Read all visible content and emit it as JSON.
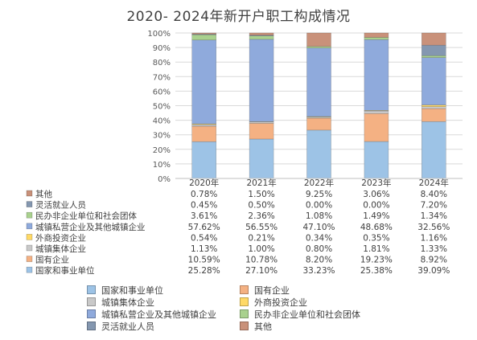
{
  "chart_data": {
    "type": "bar",
    "stacked": true,
    "percent": true,
    "title": "2020- 2024年新开户职工构成情况",
    "categories": [
      "2020年",
      "2021年",
      "2022年",
      "2023年",
      "2024年"
    ],
    "ylim": [
      0,
      100
    ],
    "yticks": [
      "0%",
      "10%",
      "20%",
      "30%",
      "40%",
      "50%",
      "60%",
      "70%",
      "80%",
      "90%",
      "100%"
    ],
    "grid": true,
    "legend_position": "bottom",
    "series": [
      {
        "name": "国家和事业单位",
        "color": "#9dc3e6",
        "values": [
          25.28,
          27.1,
          33.23,
          25.38,
          39.09
        ],
        "labels": [
          "25.28%",
          "27.10%",
          "33.23%",
          "25.38%",
          "39.09%"
        ]
      },
      {
        "name": "国有企业",
        "color": "#f4b183",
        "values": [
          10.59,
          10.78,
          8.2,
          19.23,
          8.92
        ],
        "labels": [
          "10.59%",
          "10.78%",
          "8.20%",
          "19.23%",
          "8.92%"
        ]
      },
      {
        "name": "城镇集体企业",
        "color": "#c9c9c9",
        "values": [
          1.13,
          1.0,
          0.8,
          1.81,
          1.33
        ],
        "labels": [
          "1.13%",
          "1.00%",
          "0.80%",
          "1.81%",
          "1.33%"
        ]
      },
      {
        "name": "外商投资企业",
        "color": "#ffd966",
        "values": [
          0.54,
          0.21,
          0.34,
          0.35,
          1.16
        ],
        "labels": [
          "0.54%",
          "0.21%",
          "0.34%",
          "0.35%",
          "1.16%"
        ]
      },
      {
        "name": "城镇私营企业及其他城镇企业",
        "color": "#8faadc",
        "values": [
          57.62,
          56.55,
          47.1,
          48.68,
          32.56
        ],
        "labels": [
          "57.62%",
          "56.55%",
          "47.10%",
          "48.68%",
          "32.56%"
        ]
      },
      {
        "name": "民办非企业单位和社会团体",
        "color": "#a9d18e",
        "values": [
          3.61,
          2.36,
          1.08,
          1.49,
          1.34
        ],
        "labels": [
          "3.61%",
          "2.36%",
          "1.08%",
          "1.49%",
          "1.34%"
        ]
      },
      {
        "name": "灵活就业人员",
        "color": "#8497b0",
        "values": [
          0.45,
          0.5,
          0.0,
          0.0,
          7.2
        ],
        "labels": [
          "0.45%",
          "0.50%",
          "0.00%",
          "0.00%",
          "7.20%"
        ]
      },
      {
        "name": "其他",
        "color": "#c9917a",
        "values": [
          0.78,
          1.5,
          9.25,
          3.06,
          8.4
        ],
        "labels": [
          "0.78%",
          "1.50%",
          "9.25%",
          "3.06%",
          "8.40%"
        ]
      }
    ],
    "table_order": [
      "其他",
      "灵活就业人员",
      "民办非企业单位和社会团体",
      "城镇私营企业及其他城镇企业",
      "外商投资企业",
      "城镇集体企业",
      "国有企业",
      "国家和事业单位"
    ]
  }
}
